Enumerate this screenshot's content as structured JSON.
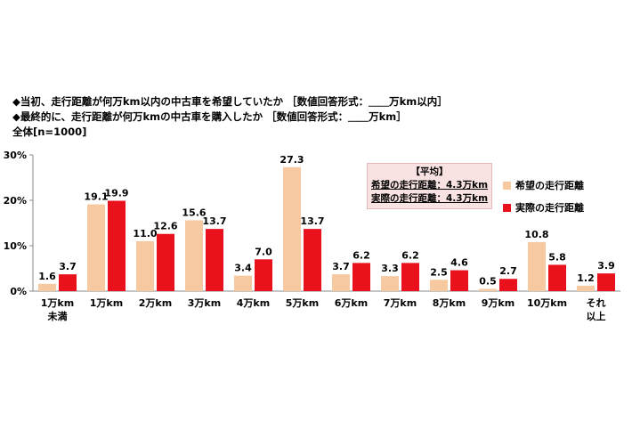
{
  "header": {
    "line1": "◆当初、走行距離が何万km以内の中古車を希望していたか ［数値回答形式：＿＿万km以内］",
    "line2": "◆最終的に、走行距離が何万kmの中古車を購入したか ［数値回答形式：＿＿万km］",
    "base": "全体[n=1000]"
  },
  "avg_box": {
    "title": "【平均】",
    "hope": "希望の走行距離：4.3万km",
    "actual": "実際の走行距離：4.3万km"
  },
  "colors": {
    "hope": "#f7c9a0",
    "actual": "#e8111c"
  },
  "chart_data": {
    "type": "bar",
    "categories": [
      "1万km\n未満",
      "1万km",
      "2万km",
      "3万km",
      "4万km",
      "5万km",
      "6万km",
      "7万km",
      "8万km",
      "9万km",
      "10万km",
      "それ\n以上"
    ],
    "series": [
      {
        "name": "希望の走行距離",
        "values": [
          1.6,
          19.1,
          11.0,
          15.6,
          3.4,
          27.3,
          3.7,
          3.3,
          2.5,
          0.5,
          10.8,
          1.2
        ]
      },
      {
        "name": "実際の走行距離",
        "values": [
          3.7,
          19.9,
          12.6,
          13.7,
          7.0,
          13.7,
          6.2,
          6.2,
          4.6,
          2.7,
          5.8,
          3.9
        ]
      }
    ],
    "yticks": [
      "0%",
      "10%",
      "20%",
      "30%"
    ],
    "ylim": [
      0,
      30
    ],
    "grid": false,
    "legend": "right"
  }
}
